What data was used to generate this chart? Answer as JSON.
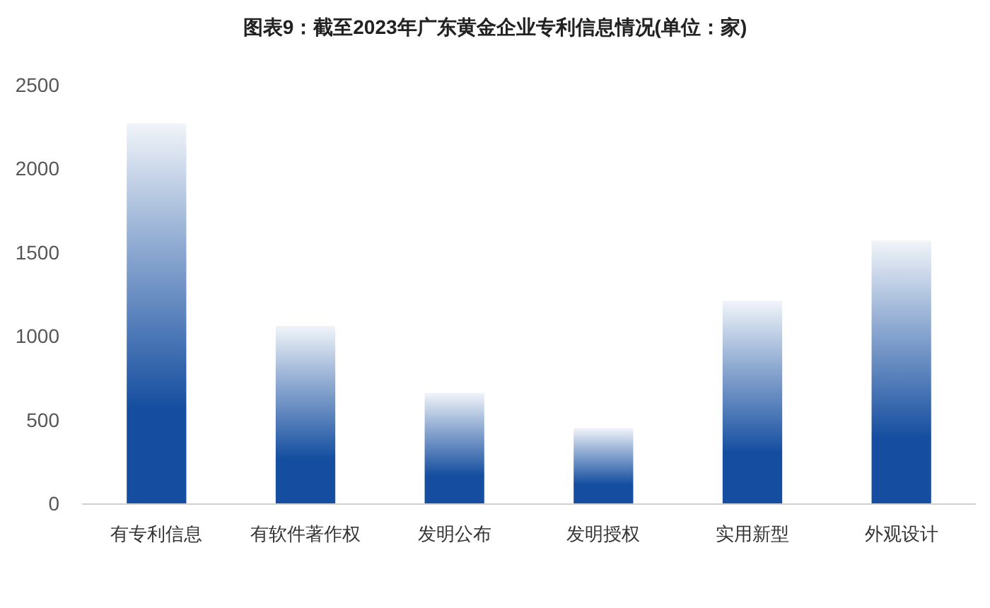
{
  "chart_data": {
    "type": "bar",
    "title": "图表9：截至2023年广东黄金企业专利信息情况(单位：家)",
    "categories": [
      "有专利信息",
      "有软件著作权",
      "发明公布",
      "发明授权",
      "实用新型",
      "外观设计"
    ],
    "values": [
      2270,
      1060,
      660,
      450,
      1210,
      1570
    ],
    "color": "#154ea0",
    "ylim": [
      0,
      2500
    ],
    "yticks": [
      0,
      500,
      1000,
      1500,
      2000,
      2500
    ],
    "grid": false
  }
}
